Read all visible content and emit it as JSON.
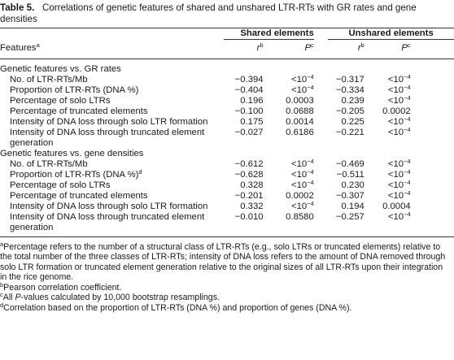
{
  "table": {
    "label": "Table 5.",
    "caption": "Correlations of genetic features of shared and unshared LTR-RTs with GR rates and gene densities",
    "group_headers": [
      "Shared elements",
      "Unshared elements"
    ],
    "col_features": "Features",
    "col_features_sup": "a",
    "col_r": "r",
    "col_r_sup": "b",
    "col_p": "P",
    "col_p_sup": "c",
    "sections": [
      {
        "title": "Genetic features vs. GR rates",
        "rows": [
          {
            "label": "No. of LTR-RTs/Mb",
            "sup": "",
            "label2": "",
            "sr": "−0.394",
            "sp": "<10",
            "sp_exp": "−4",
            "ur": "−0.317",
            "up": "<10",
            "up_exp": "−4"
          },
          {
            "label": "Proportion of LTR-RTs (DNA %)",
            "sup": "",
            "label2": "",
            "sr": "−0.404",
            "sp": "<10",
            "sp_exp": "−4",
            "ur": "−0.334",
            "up": "<10",
            "up_exp": "−4"
          },
          {
            "label": "Percentage of solo LTRs",
            "sup": "",
            "label2": "",
            "sr": "0.196",
            "sp": "0.0003",
            "sp_exp": "",
            "ur": "0.239",
            "up": "<10",
            "up_exp": "−4"
          },
          {
            "label": "Percentage of truncated elements",
            "sup": "",
            "label2": "",
            "sr": "−0.100",
            "sp": "0.0688",
            "sp_exp": "",
            "ur": "−0.205",
            "up": "0.0002",
            "up_exp": ""
          },
          {
            "label": "Intensity of DNA loss through solo LTR formation",
            "sup": "",
            "label2": "",
            "sr": "0.175",
            "sp": "0.0014",
            "sp_exp": "",
            "ur": "0.225",
            "up": "<10",
            "up_exp": "−4"
          },
          {
            "label": "Intensity of DNA loss through truncated element",
            "sup": "",
            "label2": "generation",
            "sr": "−0.027",
            "sp": "0.6186",
            "sp_exp": "",
            "ur": "−0.221",
            "up": "<10",
            "up_exp": "−4"
          }
        ]
      },
      {
        "title": "Genetic features vs. gene densities",
        "rows": [
          {
            "label": "No. of LTR-RTs/Mb",
            "sup": "",
            "label2": "",
            "sr": "−0.612",
            "sp": "<10",
            "sp_exp": "−4",
            "ur": "−0.469",
            "up": "<10",
            "up_exp": "−4"
          },
          {
            "label": "Proportion of LTR-RTs (DNA %)",
            "sup": "d",
            "label2": "",
            "sr": "−0.628",
            "sp": "<10",
            "sp_exp": "−4",
            "ur": "−0.511",
            "up": "<10",
            "up_exp": "−4"
          },
          {
            "label": "Percentage of solo LTRs",
            "sup": "",
            "label2": "",
            "sr": "0.328",
            "sp": "<10",
            "sp_exp": "−4",
            "ur": "0.230",
            "up": "<10",
            "up_exp": "−4"
          },
          {
            "label": "Percentage of truncated elements",
            "sup": "",
            "label2": "",
            "sr": "−0.201",
            "sp": "0.0002",
            "sp_exp": "",
            "ur": "−0.307",
            "up": "<10",
            "up_exp": "−4"
          },
          {
            "label": "Intensity of DNA loss through solo LTR formation",
            "sup": "",
            "label2": "",
            "sr": "0.332",
            "sp": "<10",
            "sp_exp": "−4",
            "ur": "0.194",
            "up": "0.0004",
            "up_exp": ""
          },
          {
            "label": "Intensity of DNA loss through truncated element",
            "sup": "",
            "label2": "generation",
            "sr": "−0.010",
            "sp": "0.8580",
            "sp_exp": "",
            "ur": "−0.257",
            "up": "<10",
            "up_exp": "−4"
          }
        ]
      }
    ],
    "footnotes": [
      {
        "mark": "a",
        "pre": "",
        "italic": "",
        "text": "Percentage refers to the number of a structural class of LTR-RTs (e.g., solo LTRs or truncated elements) relative to the total number of the three classes of LTR-RTs; intensity of DNA loss refers to the amount of DNA removed through solo LTR formation or truncated element generation relative to the original sizes of all LTR-RTs upon their integration in the rice genome."
      },
      {
        "mark": "b",
        "pre": "",
        "italic": "",
        "text": "Pearson correlation coefficient."
      },
      {
        "mark": "c",
        "pre": "All ",
        "italic": "P",
        "text": "-values calculated by 10,000 bootstrap resamplings."
      },
      {
        "mark": "d",
        "pre": "",
        "italic": "",
        "text": "Correlation based on the proportion of LTR-RTs (DNA %) and proportion of genes (DNA %)."
      }
    ]
  }
}
